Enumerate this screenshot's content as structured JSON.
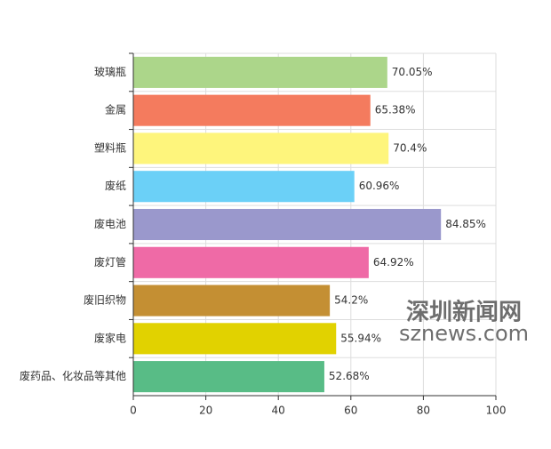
{
  "chart_data": {
    "type": "hbar",
    "categories": [
      "玻璃瓶",
      "金属",
      "塑料瓶",
      "废纸",
      "废电池",
      "废灯管",
      "废旧织物",
      "废家电",
      "废药品、化妆品等其他"
    ],
    "values": [
      70.05,
      65.38,
      70.4,
      60.96,
      84.85,
      64.92,
      54.2,
      55.94,
      52.68
    ],
    "value_labels": [
      "70.05%",
      "65.38%",
      "70.4%",
      "60.96%",
      "84.85%",
      "64.92%",
      "54.2%",
      "55.94%",
      "52.68%"
    ],
    "colors": [
      "#acd68a",
      "#f47b5e",
      "#fef57c",
      "#6bd0f7",
      "#9a98cc",
      "#ef6aa6",
      "#c48f33",
      "#e1d200",
      "#58bc86"
    ],
    "xlim": [
      0,
      100
    ],
    "xticks": [
      0,
      20,
      40,
      60,
      80,
      100
    ],
    "grid": true,
    "annotations": [
      "深圳新闻网",
      "sznews.com"
    ]
  }
}
